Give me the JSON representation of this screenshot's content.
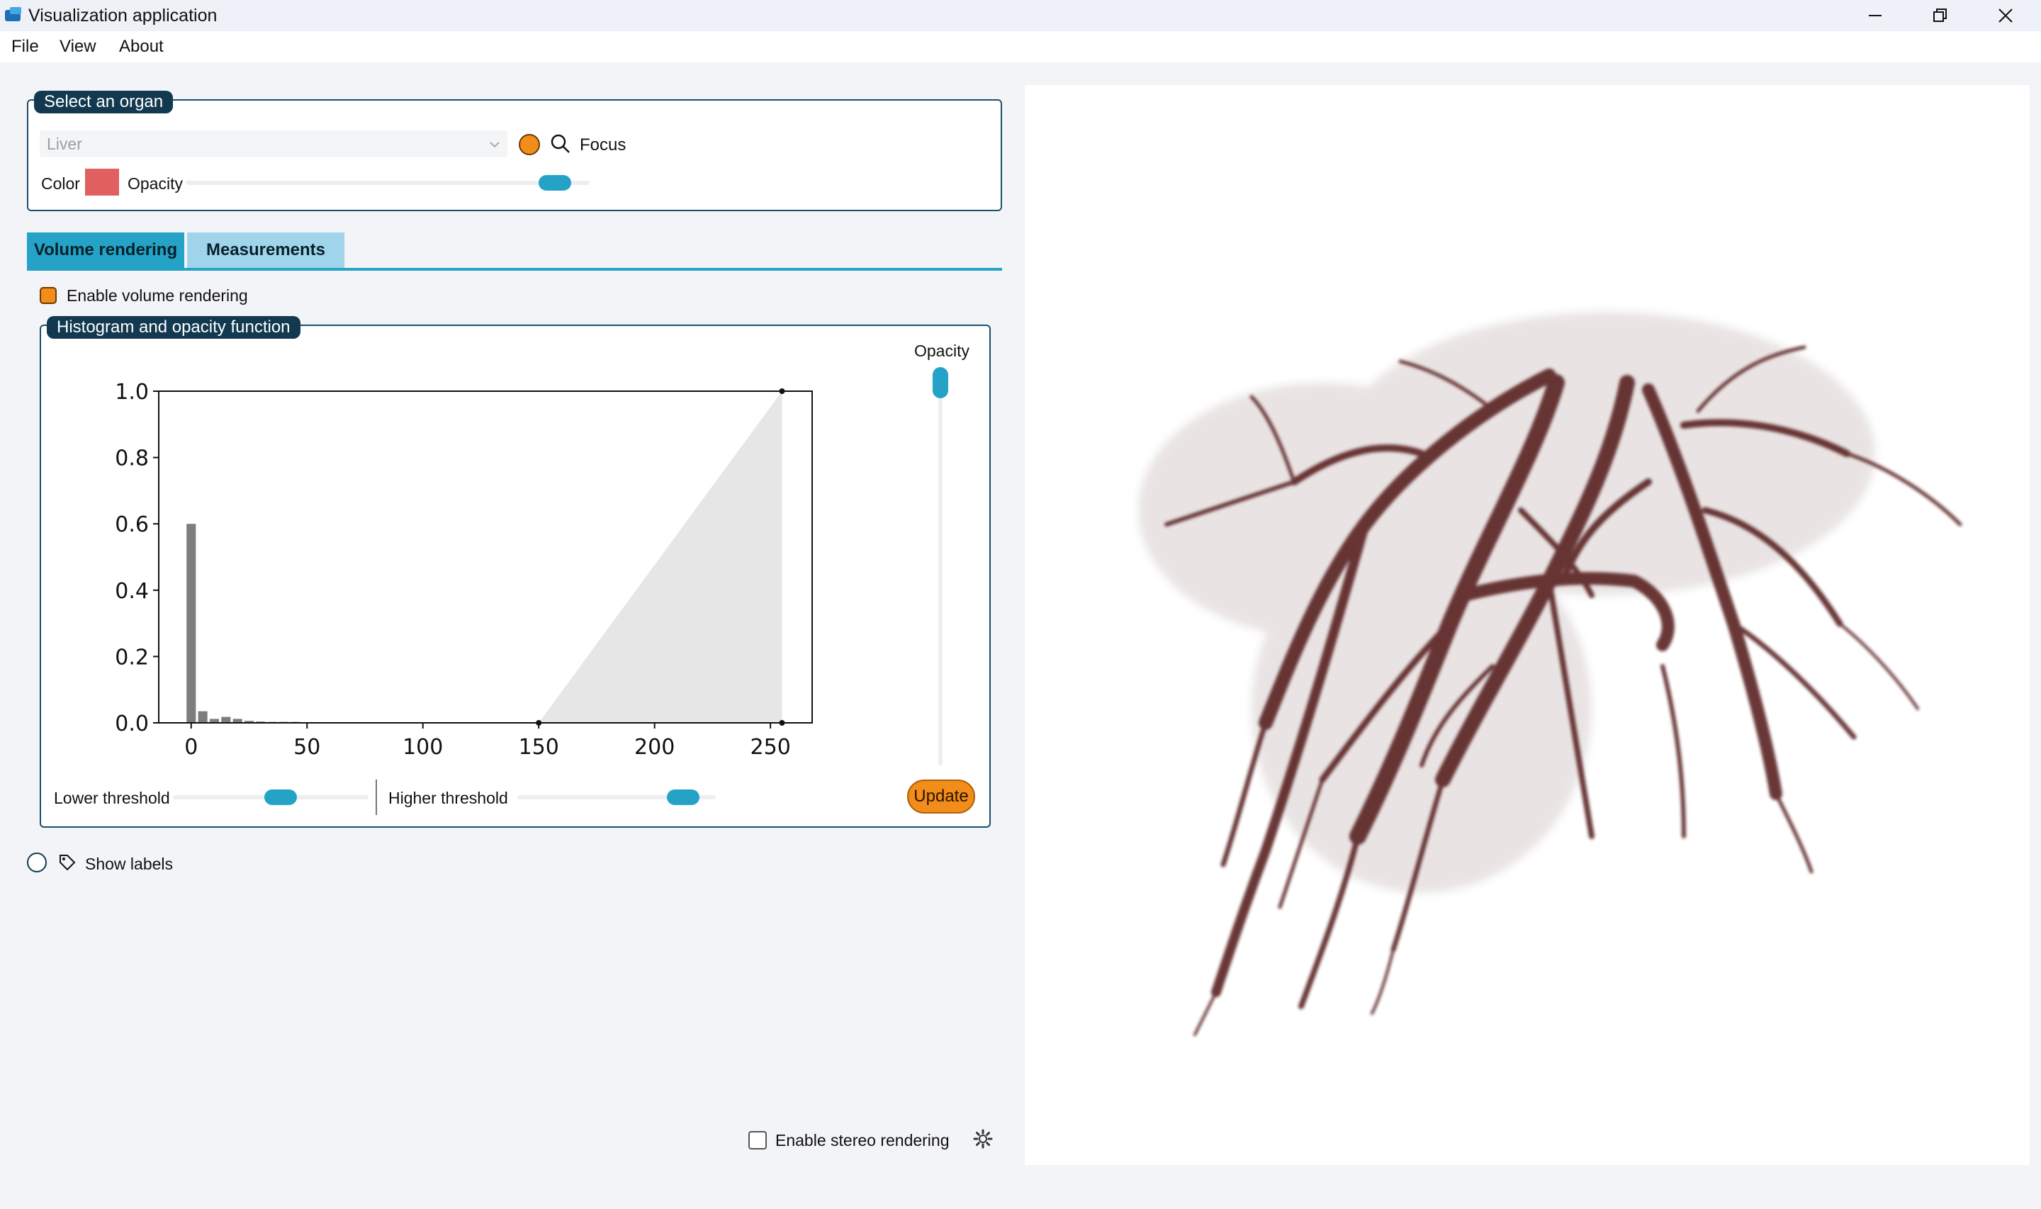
{
  "window": {
    "title": "Visualization application"
  },
  "menu": [
    "File",
    "View",
    "About"
  ],
  "organ_group": {
    "title": "Select an organ",
    "organ_select": "Liver",
    "focus_label": "Focus",
    "color_label": "Color",
    "color_value": "#e06060",
    "opacity_label": "Opacity",
    "opacity_level": 0.95
  },
  "tabs": [
    {
      "label": "Volume rendering",
      "active": true
    },
    {
      "label": "Measurements",
      "active": false
    }
  ],
  "volume": {
    "enable_label": "Enable volume rendering",
    "enabled": true,
    "histogram_title": "Histogram and opacity function",
    "opacity_slider_label": "Opacity",
    "opacity_slider_level": 1.0,
    "lower_threshold_label": "Lower threshold",
    "lower_threshold_level": 0.56,
    "higher_threshold_label": "Higher threshold",
    "higher_threshold_level": 0.9,
    "update_label": "Update"
  },
  "show_labels": {
    "label": "Show labels",
    "checked": false
  },
  "stereo": {
    "label": "Enable stereo rendering",
    "checked": false
  },
  "colors": {
    "accent": "#24a3c6",
    "orange": "#f28c1a",
    "dark_blue": "#12394f",
    "vessel": "#5a2222"
  },
  "chart_data": {
    "type": "bar",
    "xlim": [
      -14,
      268
    ],
    "ylim": [
      0,
      1.0
    ],
    "xticks": [
      0,
      50,
      100,
      150,
      200,
      250
    ],
    "yticks": [
      0.0,
      0.2,
      0.4,
      0.6,
      0.8,
      1.0
    ],
    "histogram": {
      "x": [
        0,
        5,
        10,
        15,
        20,
        25,
        30,
        35,
        40,
        45,
        50,
        60,
        70,
        80,
        90,
        100,
        110,
        120,
        130,
        140,
        150,
        160,
        170,
        180,
        190,
        200,
        210,
        220,
        230,
        240,
        250
      ],
      "values": [
        0.6,
        0.035,
        0.012,
        0.018,
        0.012,
        0.006,
        0.004,
        0.003,
        0.003,
        0.003,
        0.002,
        0.002,
        0.002,
        0.002,
        0.002,
        0.002,
        0.002,
        0.002,
        0.002,
        0.002,
        0.001,
        0.001,
        0.001,
        0.001,
        0.001,
        0.001,
        0.001,
        0.001,
        0.001,
        0.001,
        0.001
      ],
      "bin_width": 4
    },
    "opacity_function": {
      "x": [
        150,
        255,
        255
      ],
      "y": [
        0.0,
        1.0,
        0.0
      ]
    }
  }
}
